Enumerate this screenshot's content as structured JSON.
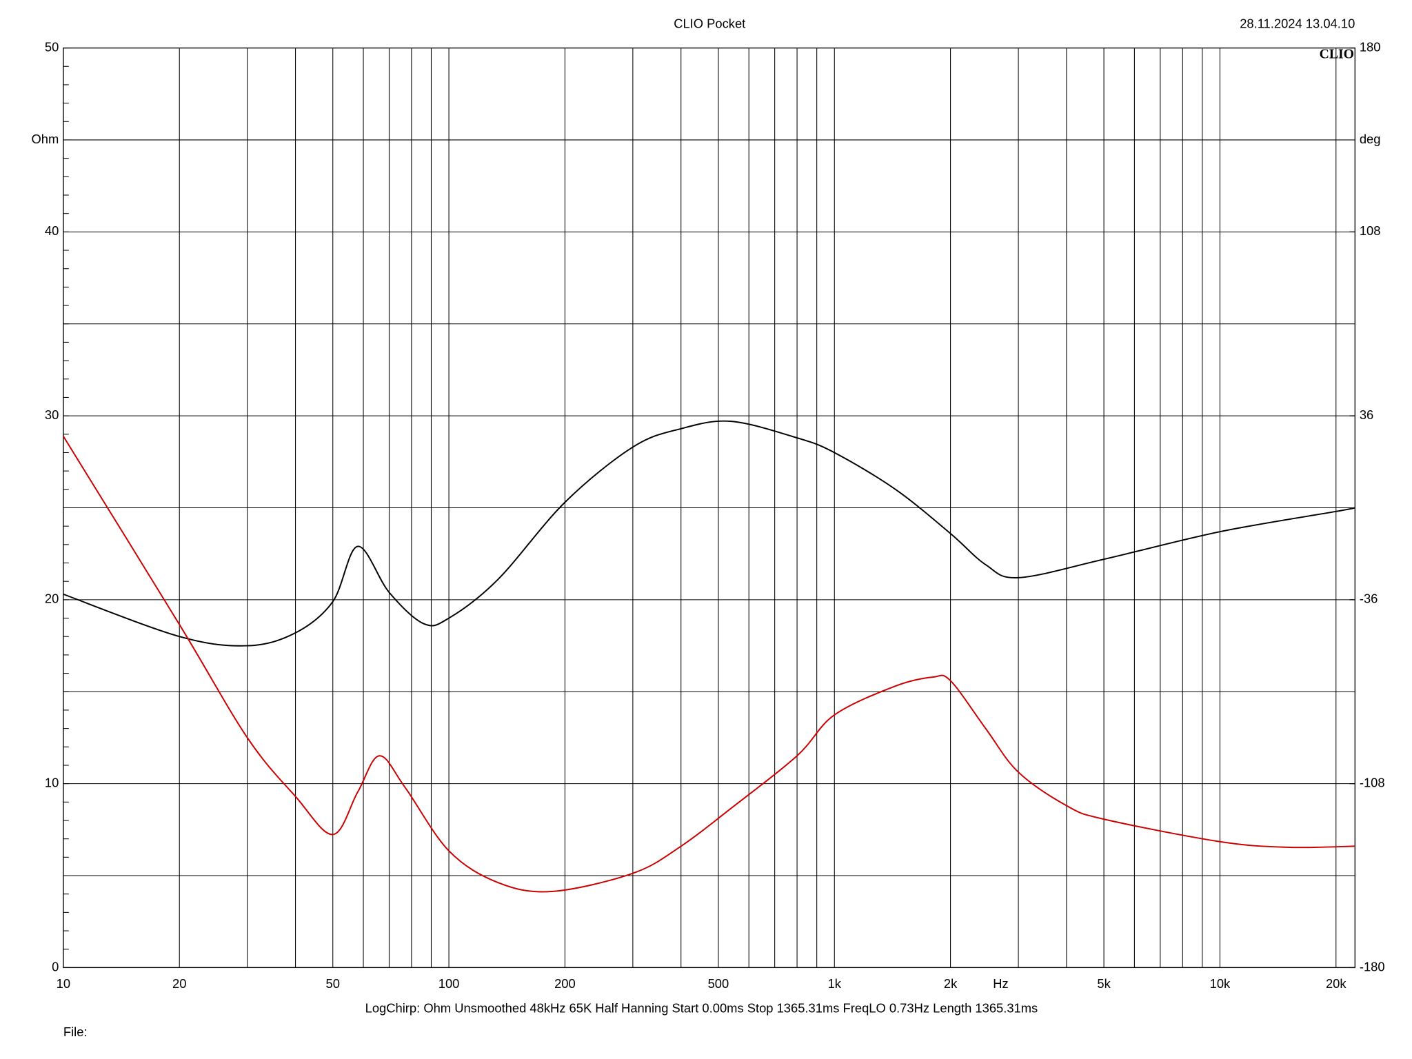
{
  "chart_data": {
    "type": "line",
    "title": "CLIO Pocket",
    "timestamp": "28.11.2024 13.04.10",
    "logo": "CLIO",
    "ylabel": "Ohm",
    "y2label": "deg",
    "xlabel": "Hz",
    "footer": "LogChirp:  Ohm   Unsmoothed   48kHz   65K   Half Hanning   Start 0.00ms    Stop 1365.31ms    FreqLO 0.73Hz    Length 1365.31ms",
    "file_label": "File:",
    "xscale": "log",
    "grid": true,
    "xlim": [
      10,
      22400
    ],
    "xticks": [
      10,
      20,
      50,
      100,
      200,
      500,
      {
        "value": 1000,
        "label": "1k"
      },
      {
        "value": 2000,
        "label": "2k"
      },
      {
        "value": 5000,
        "label": "5k"
      },
      {
        "value": 10000,
        "label": "10k"
      },
      {
        "value": 20000,
        "label": "20k"
      }
    ],
    "x_minor_grid": [
      30,
      40,
      60,
      70,
      80,
      90,
      300,
      400,
      600,
      700,
      800,
      900,
      3000,
      4000,
      6000,
      7000,
      8000,
      9000
    ],
    "ylim": [
      0,
      50
    ],
    "yticks": [
      0,
      10,
      20,
      30,
      40,
      50
    ],
    "y_minor_grid": [
      5,
      15,
      25,
      35,
      45
    ],
    "y2lim": [
      -180,
      180
    ],
    "y2ticks": [
      -180,
      -108,
      -36,
      36,
      108,
      180
    ],
    "series": [
      {
        "name": "Ohm",
        "color": "#000000",
        "x": [
          10,
          20,
          30,
          40,
          50,
          58,
          70,
          86,
          100,
          134,
          200,
          300,
          400,
          540,
          800,
          1000,
          1440,
          2000,
          2470,
          3000,
          5000,
          10000,
          20000,
          22400
        ],
        "values": [
          20.3,
          18.0,
          17.5,
          18.2,
          19.9,
          22.9,
          20.4,
          18.7,
          19.0,
          21.1,
          25.3,
          28.3,
          29.3,
          29.7,
          28.8,
          28.0,
          26.0,
          23.6,
          21.9,
          21.2,
          22.2,
          23.7,
          24.8,
          25.0
        ]
      },
      {
        "name": "deg",
        "color": "#cc0000",
        "axis": "y2",
        "x": [
          10,
          20,
          30,
          40,
          50,
          58,
          66,
          77,
          100,
          134,
          185,
          300,
          400,
          540,
          800,
          1000,
          1440,
          1800,
          2000,
          2470,
          3000,
          4000,
          5000,
          10000,
          15000,
          22400
        ],
        "values": [
          28.0,
          -45.7,
          -90.0,
          -113.0,
          -127.9,
          -111.3,
          -97.1,
          -109.5,
          -134.3,
          -146.7,
          -150.2,
          -143.1,
          -132.5,
          -117.6,
          -97.1,
          -81.1,
          -69.8,
          -66.3,
          -67.7,
          -86.5,
          -103.5,
          -116.6,
          -121.9,
          -130.7,
          -132.9,
          -132.5
        ]
      }
    ]
  }
}
